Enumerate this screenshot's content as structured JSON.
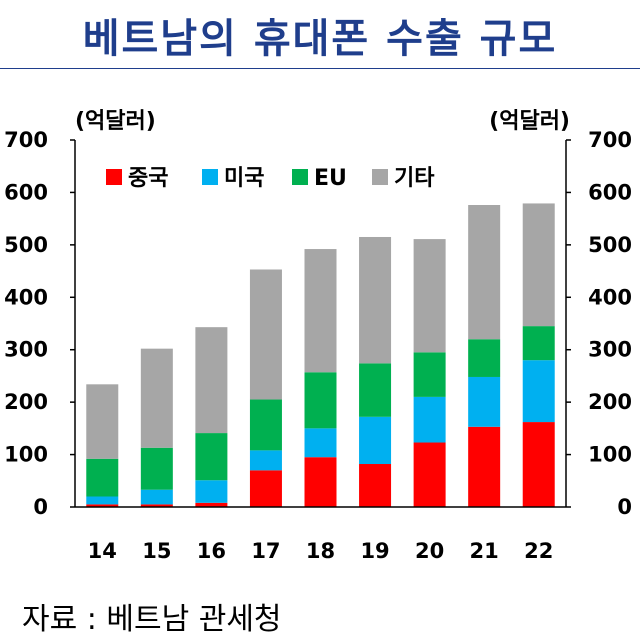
{
  "title": "베트남의 휴대폰 수출 규모",
  "source": "자료 : 베트남 관세청",
  "chart_data": {
    "type": "bar",
    "stacked": true,
    "title": "베트남의 휴대폰 수출 규모",
    "y_unit_left": "(억달러)",
    "y_unit_right": "(억달러)",
    "ylim": [
      0,
      700
    ],
    "yticks": [
      0,
      100,
      200,
      300,
      400,
      500,
      600,
      700
    ],
    "categories": [
      "14",
      "15",
      "16",
      "17",
      "18",
      "19",
      "20",
      "21",
      "22"
    ],
    "series": [
      {
        "name": "중국",
        "color": "#ff0000",
        "values": [
          5,
          5,
          8,
          70,
          95,
          82,
          123,
          153,
          162
        ]
      },
      {
        "name": "미국",
        "color": "#00b0f0",
        "values": [
          15,
          28,
          43,
          38,
          55,
          90,
          87,
          95,
          118
        ]
      },
      {
        "name": "EU",
        "color": "#00b050",
        "values": [
          72,
          80,
          90,
          97,
          107,
          102,
          85,
          72,
          65
        ]
      },
      {
        "name": "기타",
        "color": "#a6a6a6",
        "values": [
          142,
          189,
          202,
          248,
          235,
          241,
          216,
          256,
          234
        ]
      }
    ],
    "legend": [
      "중국",
      "미국",
      "EU",
      "기타"
    ]
  }
}
